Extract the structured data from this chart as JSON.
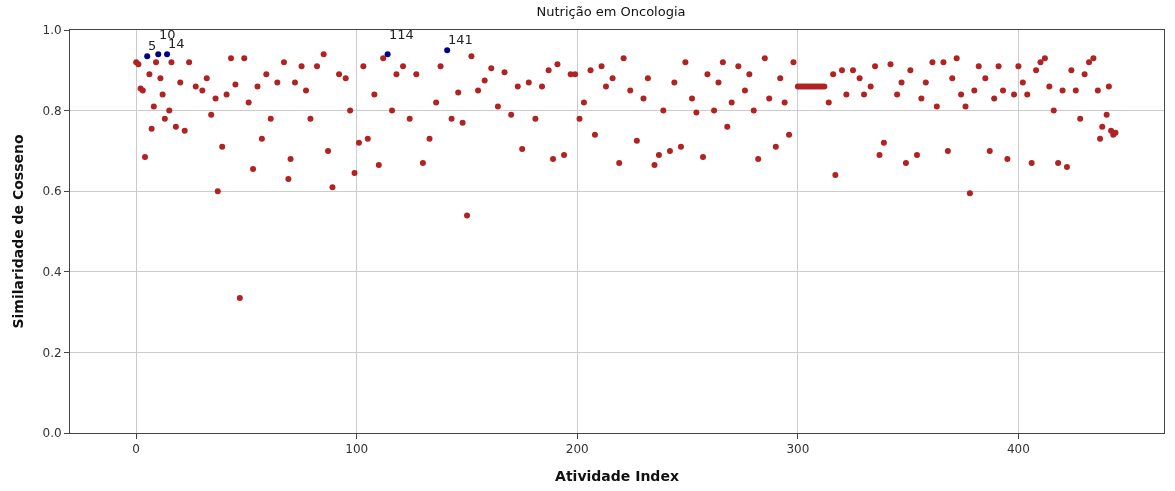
{
  "chart_data": {
    "type": "scatter",
    "title": "Nutrição em Oncologia",
    "xlabel": "Atividade Index",
    "ylabel": "Similaridade de Cosseno",
    "xlim": [
      -30,
      466
    ],
    "xticks": [
      0,
      100,
      200,
      300,
      400
    ],
    "ylim": [
      0,
      1.0
    ],
    "yticks": [
      {
        "value": 0,
        "label": "0.0"
      },
      0.2,
      0.4,
      0.6,
      0.8,
      {
        "value": 1,
        "label": "1.0"
      }
    ],
    "grid": true,
    "marker": "circle",
    "series": [
      {
        "color": "#b22222",
        "x": [
          0,
          1,
          2,
          3,
          4,
          6,
          7,
          8,
          9,
          11,
          12,
          13,
          15,
          16,
          18,
          20,
          22,
          24,
          27,
          30,
          32,
          34,
          36,
          37,
          39,
          41,
          43,
          45,
          47,
          49,
          51,
          53,
          55,
          57,
          59,
          61,
          64,
          67,
          69,
          70,
          72,
          75,
          77,
          79,
          82,
          85,
          87,
          89,
          92,
          95,
          97,
          99,
          101,
          103,
          105,
          108,
          110,
          112,
          116,
          118,
          121,
          124,
          127,
          130,
          133,
          136,
          138,
          143,
          146,
          148,
          150,
          152,
          155,
          158,
          161,
          164,
          167,
          170,
          173,
          175,
          178,
          181,
          184,
          187,
          189,
          191,
          194,
          197,
          199,
          201,
          203,
          206,
          208,
          211,
          213,
          216,
          219,
          221,
          224,
          227,
          230,
          232,
          235,
          237,
          239,
          242,
          244,
          247,
          249,
          252,
          254,
          257,
          259,
          262,
          264,
          266,
          268,
          270,
          273,
          276,
          278,
          280,
          282,
          285,
          287,
          290,
          292,
          294,
          296,
          298,
          300,
          301,
          302,
          303,
          304,
          305,
          306,
          307,
          308,
          309,
          310,
          311,
          312,
          314,
          316,
          317,
          320,
          322,
          325,
          328,
          330,
          333,
          335,
          337,
          339,
          342,
          345,
          347,
          349,
          351,
          354,
          356,
          358,
          361,
          363,
          366,
          368,
          370,
          372,
          374,
          376,
          378,
          380,
          382,
          385,
          387,
          389,
          391,
          393,
          395,
          398,
          400,
          402,
          404,
          406,
          408,
          410,
          412,
          414,
          416,
          418,
          420,
          422,
          424,
          426,
          428,
          430,
          432,
          434,
          436,
          437,
          438,
          440,
          441,
          442,
          443,
          444
        ],
        "values": [
          0.92,
          0.915,
          0.855,
          0.85,
          0.685,
          0.89,
          0.755,
          0.81,
          0.92,
          0.88,
          0.84,
          0.78,
          0.8,
          0.92,
          0.76,
          0.87,
          0.75,
          0.92,
          0.86,
          0.85,
          0.88,
          0.79,
          0.83,
          0.6,
          0.71,
          0.84,
          0.93,
          0.865,
          0.335,
          0.93,
          0.82,
          0.655,
          0.86,
          0.73,
          0.89,
          0.78,
          0.87,
          0.92,
          0.63,
          0.68,
          0.87,
          0.91,
          0.85,
          0.78,
          0.91,
          0.94,
          0.7,
          0.61,
          0.89,
          0.88,
          0.8,
          0.645,
          0.72,
          0.91,
          0.73,
          0.84,
          0.665,
          0.93,
          0.8,
          0.89,
          0.91,
          0.78,
          0.89,
          0.67,
          0.73,
          0.82,
          0.91,
          0.78,
          0.845,
          0.77,
          0.54,
          0.935,
          0.85,
          0.875,
          0.905,
          0.81,
          0.895,
          0.79,
          0.86,
          0.705,
          0.87,
          0.78,
          0.86,
          0.9,
          0.68,
          0.915,
          0.69,
          0.89,
          0.89,
          0.78,
          0.82,
          0.9,
          0.74,
          0.91,
          0.86,
          0.88,
          0.67,
          0.93,
          0.85,
          0.725,
          0.83,
          0.88,
          0.665,
          0.69,
          0.8,
          0.7,
          0.87,
          0.71,
          0.92,
          0.83,
          0.795,
          0.685,
          0.89,
          0.8,
          0.87,
          0.92,
          0.76,
          0.82,
          0.91,
          0.85,
          0.89,
          0.8,
          0.68,
          0.93,
          0.83,
          0.71,
          0.88,
          0.82,
          0.74,
          0.92,
          0.86,
          0.86,
          0.86,
          0.86,
          0.86,
          0.86,
          0.86,
          0.86,
          0.86,
          0.86,
          0.86,
          0.86,
          0.86,
          0.82,
          0.89,
          0.64,
          0.9,
          0.84,
          0.9,
          0.88,
          0.84,
          0.86,
          0.91,
          0.69,
          0.72,
          0.915,
          0.84,
          0.87,
          0.67,
          0.9,
          0.69,
          0.83,
          0.87,
          0.92,
          0.81,
          0.92,
          0.7,
          0.88,
          0.93,
          0.84,
          0.81,
          0.595,
          0.85,
          0.91,
          0.88,
          0.7,
          0.83,
          0.91,
          0.85,
          0.68,
          0.84,
          0.91,
          0.87,
          0.84,
          0.67,
          0.9,
          0.92,
          0.93,
          0.86,
          0.8,
          0.67,
          0.85,
          0.66,
          0.9,
          0.85,
          0.78,
          0.89,
          0.92,
          0.93,
          0.85,
          0.73,
          0.76,
          0.79,
          0.86,
          0.75,
          0.74,
          0.745
        ]
      },
      {
        "color": "#00008b",
        "x": [
          5,
          10,
          14,
          114,
          141
        ],
        "values": [
          0.935,
          0.94,
          0.94,
          0.94,
          0.95
        ]
      }
    ],
    "annotations": [
      {
        "text": "5",
        "x": 5,
        "y": 0.935
      },
      {
        "text": "10",
        "x": 10,
        "y": 0.94
      },
      {
        "text": "14",
        "x": 14,
        "y": 0.94
      },
      {
        "text": "114",
        "x": 114,
        "y": 0.94
      },
      {
        "text": "141",
        "x": 141,
        "y": 0.95
      }
    ]
  }
}
